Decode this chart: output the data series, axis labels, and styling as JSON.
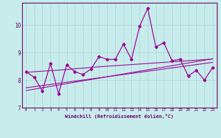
{
  "xlabel": "Windchill (Refroidissement éolien,°C)",
  "x_values": [
    0,
    1,
    2,
    3,
    4,
    5,
    6,
    7,
    8,
    9,
    10,
    11,
    12,
    13,
    14,
    15,
    16,
    17,
    18,
    19,
    20,
    21,
    22,
    23
  ],
  "main_line": [
    8.3,
    8.1,
    7.6,
    8.6,
    7.5,
    8.55,
    8.3,
    8.2,
    8.4,
    8.85,
    8.75,
    8.75,
    9.3,
    8.75,
    9.95,
    10.6,
    9.2,
    9.35,
    8.7,
    8.75,
    8.15,
    8.35,
    8.0,
    8.45
  ],
  "trend_upper": [
    8.28,
    8.3,
    8.32,
    8.34,
    8.36,
    8.38,
    8.41,
    8.43,
    8.46,
    8.48,
    8.5,
    8.52,
    8.54,
    8.56,
    8.58,
    8.6,
    8.62,
    8.64,
    8.66,
    8.68,
    8.7,
    8.72,
    8.74,
    8.76
  ],
  "trend_lower1": [
    7.72,
    7.76,
    7.8,
    7.84,
    7.88,
    7.92,
    7.96,
    8.0,
    8.04,
    8.08,
    8.12,
    8.16,
    8.2,
    8.24,
    8.28,
    8.32,
    8.36,
    8.4,
    8.44,
    8.48,
    8.52,
    8.56,
    8.6,
    8.64
  ],
  "trend_lower2": [
    7.62,
    7.67,
    7.72,
    7.77,
    7.82,
    7.87,
    7.92,
    7.97,
    8.02,
    8.07,
    8.12,
    8.17,
    8.22,
    8.27,
    8.32,
    8.37,
    8.42,
    8.47,
    8.52,
    8.57,
    8.62,
    8.67,
    8.72,
    8.77
  ],
  "line_color": "#990099",
  "bg_color": "#c8ecec",
  "grid_color": "#a8d4d4",
  "text_color": "#660066",
  "ylim": [
    7.0,
    10.8
  ],
  "yticks": [
    7,
    8,
    9,
    10
  ]
}
